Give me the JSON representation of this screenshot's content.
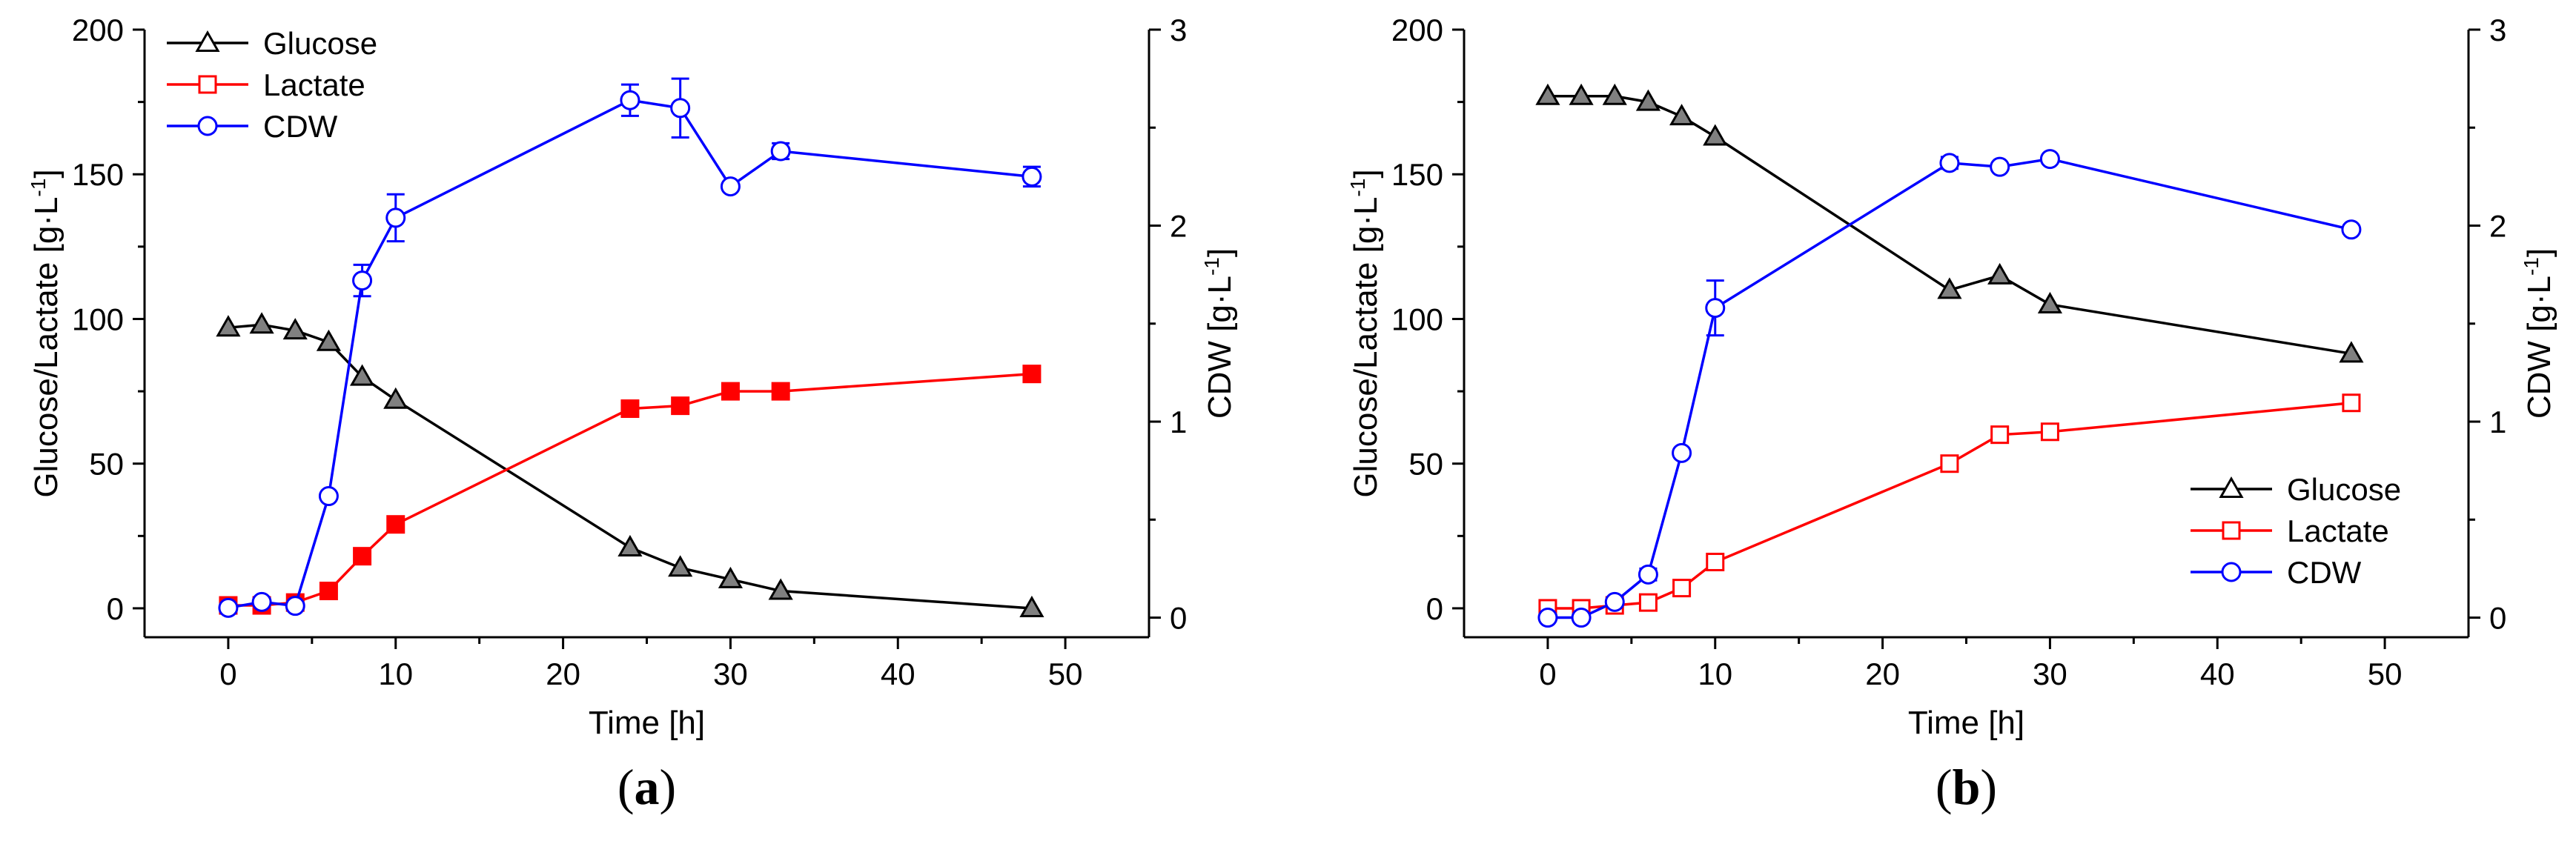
{
  "chart_data": [
    {
      "type": "line",
      "panel_label": {
        "open": "(",
        "letter": "a",
        "close": ")"
      },
      "xlabel": "Time [h]",
      "ylabel_left": "Glucose/Lactate [g·L",
      "ylabel_right": "CDW [g·L",
      "ylabel_exp": "-1",
      "ylabel_close": "]",
      "xlim": [
        -5,
        55
      ],
      "ylim_left": [
        -10,
        200
      ],
      "ylim_right": [
        -0.1,
        3
      ],
      "x_ticks": [
        "0",
        "10",
        "20",
        "30",
        "40",
        "50"
      ],
      "y_left_ticks": [
        "0",
        "50",
        "100",
        "150",
        "200"
      ],
      "y_right_ticks": [
        "0",
        "1",
        "2",
        "3"
      ],
      "legend_position": "top-left",
      "series": [
        {
          "name": "Glucose",
          "axis": "left",
          "color": "#000000",
          "marker": "triangle",
          "marker_fill": "#808080",
          "x": [
            0,
            2,
            4,
            6,
            8,
            10,
            24,
            27,
            30,
            33,
            48
          ],
          "y": [
            97,
            98,
            96,
            92,
            80,
            72,
            21,
            14,
            10,
            6,
            0
          ]
        },
        {
          "name": "Lactate",
          "axis": "left",
          "color": "#ff0000",
          "marker": "square",
          "marker_fill": "#ff0000",
          "x": [
            0,
            2,
            4,
            6,
            8,
            10,
            24,
            27,
            30,
            33,
            48
          ],
          "y": [
            1,
            1,
            2,
            6,
            18,
            29,
            69,
            70,
            75,
            75,
            81
          ]
        },
        {
          "name": "CDW",
          "axis": "right",
          "color": "#0000ff",
          "marker": "circle",
          "marker_fill": "#ffffff",
          "x": [
            0,
            2,
            4,
            6,
            8,
            10,
            24,
            27,
            30,
            33,
            48
          ],
          "y": [
            0.05,
            0.08,
            0.06,
            0.62,
            1.72,
            2.04,
            2.64,
            2.6,
            2.2,
            2.38,
            2.25
          ],
          "err": [
            0,
            0,
            0,
            0,
            0.08,
            0.12,
            0.08,
            0.15,
            0,
            0.04,
            0.05
          ]
        }
      ]
    },
    {
      "type": "line",
      "panel_label": {
        "open": "(",
        "letter": "b",
        "close": ")"
      },
      "xlabel": "Time [h]",
      "ylabel_left": "Glucose/Lactate [g·L",
      "ylabel_right": "CDW [g·L",
      "ylabel_exp": "-1",
      "ylabel_close": "]",
      "xlim": [
        -5,
        55
      ],
      "ylim_left": [
        -10,
        200
      ],
      "ylim_right": [
        -0.1,
        3
      ],
      "x_ticks": [
        "0",
        "10",
        "20",
        "30",
        "40",
        "50"
      ],
      "y_left_ticks": [
        "0",
        "50",
        "100",
        "150",
        "200"
      ],
      "y_right_ticks": [
        "0",
        "1",
        "2",
        "3"
      ],
      "legend_position": "bottom-right",
      "series": [
        {
          "name": "Glucose",
          "axis": "left",
          "color": "#000000",
          "marker": "triangle",
          "marker_fill": "#808080",
          "x": [
            0,
            2,
            4,
            6,
            8,
            10,
            24,
            27,
            30,
            48
          ],
          "y": [
            177,
            177,
            177,
            175,
            170,
            163,
            110,
            115,
            105,
            88
          ]
        },
        {
          "name": "Lactate",
          "axis": "left",
          "color": "#ff0000",
          "marker": "square",
          "marker_fill": "#ffffff",
          "x": [
            0,
            2,
            4,
            6,
            8,
            10,
            24,
            27,
            30,
            48
          ],
          "y": [
            0,
            0,
            1,
            2,
            7,
            16,
            50,
            60,
            61,
            71
          ]
        },
        {
          "name": "CDW",
          "axis": "right",
          "color": "#0000ff",
          "marker": "circle",
          "marker_fill": "#ffffff",
          "x": [
            0,
            2,
            4,
            6,
            8,
            10,
            24,
            27,
            30,
            48
          ],
          "y": [
            0,
            0,
            0.08,
            0.22,
            0.84,
            1.58,
            2.32,
            2.3,
            2.34,
            1.98
          ],
          "err": [
            0,
            0,
            0,
            0.03,
            0,
            0.14,
            0.03,
            0,
            0,
            0
          ]
        }
      ]
    }
  ]
}
